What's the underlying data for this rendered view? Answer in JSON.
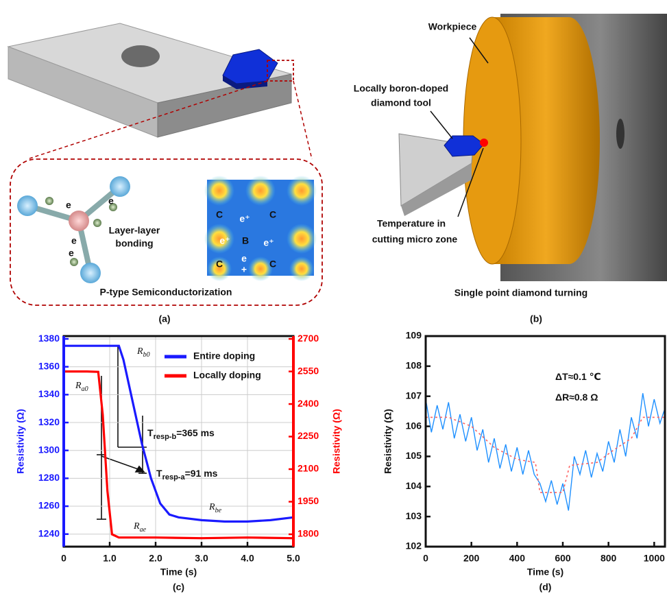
{
  "panel_a": {
    "label": "(a)",
    "caption": "P-type Semiconductorization",
    "bonding": [
      "Layer-layer",
      "bonding"
    ],
    "electrons": [
      "e",
      "e",
      "e",
      "e"
    ],
    "lattice": {
      "corners": [
        "C",
        "C",
        "C",
        "C"
      ],
      "center": "B",
      "holes": [
        "e⁺",
        "e⁺",
        "e⁺",
        "e"
      ],
      "hole_sign": "+"
    }
  },
  "panel_b": {
    "label": "(b)",
    "caption": "Single point diamond turning",
    "workpiece": "Workpiece",
    "tool": [
      "Locally boron-doped",
      "diamond tool"
    ],
    "temperature": [
      "Temperature  in",
      "cutting micro zone"
    ]
  },
  "chart_data": [
    {
      "type": "line",
      "label": "(c)",
      "xlabel": "Time (s)",
      "ylabel": "Resistivity (Ω)",
      "y2label": "Resistivity (Ω)",
      "y_color": "#1a1aff",
      "y2_color": "#ff0000",
      "grid": true,
      "legend": "upper right",
      "xlim": [
        0,
        5
      ],
      "xticks": [
        0,
        {
          "value": 1,
          "label": "1.0"
        },
        {
          "value": 2,
          "label": "2.0"
        },
        {
          "value": 3,
          "label": "3.0"
        },
        {
          "value": 4,
          "label": "4.0"
        },
        {
          "value": 5,
          "label": "5.0"
        }
      ],
      "ylim": [
        1231,
        1382
      ],
      "yticks": [
        1240,
        1260,
        1280,
        1300,
        1320,
        1340,
        1360,
        1380
      ],
      "y2lim": [
        1743,
        2713
      ],
      "y2ticks": [
        1800,
        1950,
        2100,
        2250,
        2400,
        2550,
        2700
      ],
      "series": [
        {
          "name": "Entire doping",
          "color": "#1a1aff",
          "axis": "y",
          "x": [
            0,
            0.5,
            1.0,
            1.2,
            1.3,
            1.5,
            1.7,
            1.9,
            2.1,
            2.3,
            2.5,
            3.0,
            3.5,
            4.0,
            4.5,
            5.0
          ],
          "values": [
            1375,
            1375,
            1375,
            1375,
            1365,
            1335,
            1305,
            1280,
            1262,
            1254,
            1252,
            1250,
            1249,
            1249,
            1250,
            1252
          ]
        },
        {
          "name": "Locally doping",
          "color": "#ff0000",
          "axis": "y2",
          "x": [
            0,
            0.5,
            0.75,
            0.85,
            0.95,
            1.05,
            1.2,
            2,
            3,
            4,
            5
          ],
          "values": [
            2550,
            2550,
            2548,
            2350,
            2000,
            1800,
            1785,
            1785,
            1782,
            1785,
            1782
          ]
        }
      ],
      "annotations": [
        {
          "text": "R",
          "sub": "b0"
        },
        {
          "text": "R",
          "sub": "a0"
        },
        {
          "text": "R",
          "sub": "be"
        },
        {
          "text": "R",
          "sub": "ae"
        },
        {
          "text": "T",
          "sub": "resp-b",
          "after": "=365 ms"
        },
        {
          "text": "T",
          "sub": "resp-a",
          "after": "=91 ms"
        }
      ]
    },
    {
      "type": "line",
      "label": "(d)",
      "xlabel": "Time (s)",
      "ylabel": "Resistivity (Ω)",
      "grid": false,
      "xlim": [
        0,
        1047
      ],
      "xticks": [
        0,
        200,
        400,
        600,
        800,
        1000
      ],
      "ylim": [
        102,
        109
      ],
      "yticks": [
        102,
        103,
        104,
        105,
        106,
        107,
        108,
        109
      ],
      "series": [
        {
          "color": "#1e90ff",
          "style": "solid",
          "x": [
            0,
            25,
            50,
            75,
            100,
            125,
            150,
            175,
            200,
            225,
            250,
            275,
            300,
            325,
            350,
            375,
            400,
            425,
            450,
            475,
            500,
            525,
            550,
            575,
            600,
            625,
            650,
            675,
            700,
            725,
            750,
            775,
            800,
            825,
            850,
            875,
            900,
            925,
            950,
            975,
            1000,
            1025,
            1047
          ],
          "values": [
            106.9,
            105.8,
            106.7,
            105.9,
            106.8,
            105.6,
            106.4,
            105.5,
            106.3,
            105.2,
            105.9,
            104.8,
            105.6,
            104.6,
            105.4,
            104.5,
            105.3,
            104.4,
            105.2,
            104.4,
            104.1,
            103.5,
            104.2,
            103.4,
            104.1,
            103.2,
            105.0,
            104.4,
            105.2,
            104.3,
            105.1,
            104.5,
            105.5,
            104.8,
            105.9,
            105.0,
            106.3,
            105.6,
            107.1,
            106.0,
            106.9,
            106.1,
            106.6
          ]
        },
        {
          "color": "#ff6060",
          "style": "dashed",
          "x": [
            0,
            100,
            200,
            300,
            400,
            480,
            500,
            600,
            630,
            750,
            820,
            900,
            950,
            1047
          ],
          "values": [
            106.3,
            106.3,
            106.0,
            105.3,
            104.9,
            104.8,
            103.8,
            103.8,
            104.7,
            104.8,
            105.2,
            105.6,
            106.3,
            106.3
          ]
        }
      ],
      "annotations": [
        {
          "text": "ΔT≈0.1 ℃"
        },
        {
          "text": "ΔR≈0.8  Ω"
        }
      ]
    }
  ]
}
